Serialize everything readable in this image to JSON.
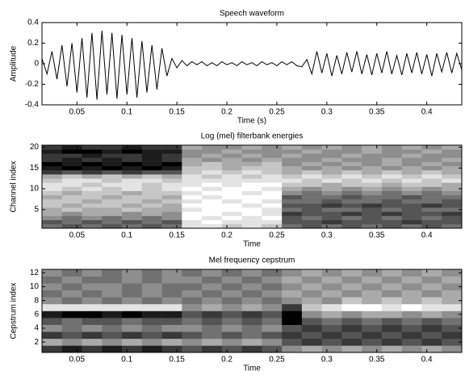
{
  "chart_data": [
    {
      "type": "line",
      "title": "Speech waveform",
      "xlabel": "Time (s)",
      "ylabel": "Amplitude",
      "color": "#000000",
      "x": [
        0.015,
        0.02,
        0.025,
        0.03,
        0.035,
        0.04,
        0.045,
        0.05,
        0.055,
        0.06,
        0.065,
        0.07,
        0.075,
        0.08,
        0.085,
        0.09,
        0.095,
        0.1,
        0.105,
        0.11,
        0.115,
        0.12,
        0.125,
        0.13,
        0.135,
        0.14,
        0.145,
        0.15,
        0.155,
        0.16,
        0.165,
        0.17,
        0.175,
        0.18,
        0.185,
        0.19,
        0.195,
        0.2,
        0.205,
        0.21,
        0.215,
        0.22,
        0.225,
        0.23,
        0.235,
        0.24,
        0.245,
        0.25,
        0.255,
        0.26,
        0.265,
        0.27,
        0.275,
        0.28,
        0.285,
        0.29,
        0.295,
        0.3,
        0.305,
        0.31,
        0.315,
        0.32,
        0.325,
        0.33,
        0.335,
        0.34,
        0.345,
        0.35,
        0.355,
        0.36,
        0.365,
        0.37,
        0.375,
        0.38,
        0.385,
        0.39,
        0.395,
        0.4,
        0.405,
        0.41,
        0.415,
        0.42,
        0.425,
        0.43,
        0.435
      ],
      "values": [
        0.05,
        -0.1,
        0.12,
        -0.15,
        0.18,
        -0.22,
        0.2,
        -0.28,
        0.25,
        -0.33,
        0.3,
        -0.35,
        0.32,
        -0.3,
        0.3,
        -0.34,
        0.28,
        -0.3,
        0.25,
        -0.33,
        0.22,
        -0.28,
        0.18,
        -0.25,
        0.15,
        -0.12,
        0.05,
        -0.04,
        0.03,
        -0.02,
        0.02,
        -0.01,
        0.02,
        -0.02,
        0.01,
        -0.02,
        0.02,
        -0.01,
        0.01,
        -0.02,
        0.02,
        -0.01,
        0.01,
        -0.02,
        0.02,
        -0.01,
        0.01,
        -0.02,
        0.02,
        -0.01,
        0.02,
        -0.02,
        -0.03,
        0.04,
        -0.1,
        0.12,
        -0.09,
        0.1,
        -0.12,
        0.08,
        -0.1,
        0.11,
        -0.08,
        0.12,
        -0.1,
        0.09,
        -0.11,
        0.1,
        -0.09,
        0.12,
        -0.1,
        0.08,
        -0.11,
        0.1,
        -0.09,
        0.11,
        -0.1,
        0.09,
        -0.12,
        0.1,
        -0.08,
        0.11,
        -0.09,
        0.1,
        -0.06
      ],
      "xlim": [
        0.015,
        0.435
      ],
      "xticks": [
        0.05,
        0.1,
        0.15,
        0.2,
        0.25,
        0.3,
        0.35,
        0.4
      ],
      "ylim": [
        -0.4,
        0.4
      ],
      "yticks": [
        -0.4,
        -0.2,
        0,
        0.2,
        0.4
      ]
    },
    {
      "type": "heatmap",
      "title": "Log (mel) filterbank energies",
      "xlabel": "Time",
      "ylabel": "Channel index",
      "colormap": "gray",
      "clim": [
        0,
        9
      ],
      "x": [
        0.025,
        0.045,
        0.065,
        0.085,
        0.105,
        0.125,
        0.145,
        0.165,
        0.185,
        0.205,
        0.225,
        0.245,
        0.265,
        0.285,
        0.305,
        0.325,
        0.345,
        0.365,
        0.385,
        0.405,
        0.425
      ],
      "y": [
        1,
        2,
        3,
        4,
        5,
        6,
        7,
        8,
        9,
        10,
        11,
        12,
        13,
        14,
        15,
        16,
        17,
        18,
        19,
        20
      ],
      "z": [
        [
          4,
          3,
          4,
          3,
          4,
          3,
          4,
          8,
          8,
          7,
          8,
          7,
          4,
          3,
          4,
          3,
          4,
          3,
          4,
          3,
          4
        ],
        [
          3,
          4,
          3,
          4,
          3,
          4,
          3,
          8,
          9,
          8,
          8,
          8,
          3,
          3,
          2,
          3,
          3,
          3,
          2,
          3,
          3
        ],
        [
          5,
          4,
          5,
          4,
          5,
          4,
          5,
          9,
          8,
          9,
          8,
          9,
          3,
          4,
          3,
          4,
          3,
          4,
          3,
          4,
          3
        ],
        [
          6,
          5,
          6,
          6,
          5,
          6,
          5,
          9,
          9,
          8,
          9,
          8,
          2,
          3,
          3,
          2,
          3,
          2,
          3,
          3,
          2
        ],
        [
          6,
          7,
          6,
          6,
          7,
          6,
          6,
          8,
          9,
          9,
          9,
          8,
          4,
          3,
          4,
          4,
          3,
          4,
          3,
          4,
          4
        ],
        [
          7,
          6,
          7,
          7,
          6,
          7,
          6,
          9,
          9,
          9,
          8,
          9,
          3,
          3,
          2,
          3,
          2,
          3,
          3,
          2,
          3
        ],
        [
          7,
          7,
          6,
          7,
          7,
          6,
          7,
          8,
          9,
          8,
          9,
          8,
          4,
          4,
          3,
          4,
          4,
          3,
          4,
          4,
          3
        ],
        [
          6,
          7,
          7,
          6,
          7,
          7,
          6,
          9,
          8,
          9,
          9,
          9,
          3,
          4,
          4,
          3,
          4,
          4,
          3,
          4,
          4
        ],
        [
          7,
          6,
          7,
          7,
          6,
          7,
          7,
          8,
          9,
          9,
          8,
          9,
          5,
          4,
          5,
          4,
          5,
          4,
          5,
          4,
          5
        ],
        [
          8,
          7,
          8,
          7,
          8,
          7,
          8,
          9,
          8,
          9,
          9,
          8,
          6,
          5,
          6,
          5,
          6,
          5,
          6,
          5,
          6
        ],
        [
          8,
          8,
          7,
          8,
          8,
          7,
          8,
          8,
          9,
          8,
          9,
          9,
          7,
          7,
          6,
          7,
          7,
          6,
          7,
          7,
          6
        ],
        [
          7,
          8,
          8,
          7,
          8,
          8,
          7,
          8,
          8,
          8,
          8,
          8,
          8,
          7,
          8,
          7,
          8,
          7,
          8,
          7,
          8
        ],
        [
          6,
          7,
          6,
          7,
          6,
          7,
          6,
          8,
          7,
          8,
          7,
          8,
          7,
          8,
          7,
          8,
          7,
          8,
          7,
          8,
          7
        ],
        [
          2,
          3,
          2,
          3,
          2,
          3,
          3,
          7,
          8,
          7,
          8,
          7,
          6,
          7,
          6,
          7,
          6,
          7,
          6,
          7,
          6
        ],
        [
          1,
          0,
          1,
          0,
          1,
          0,
          1,
          7,
          7,
          6,
          7,
          7,
          6,
          5,
          6,
          5,
          6,
          5,
          6,
          5,
          6
        ],
        [
          0,
          1,
          0,
          1,
          0,
          1,
          0,
          6,
          7,
          6,
          6,
          7,
          5,
          6,
          5,
          6,
          5,
          6,
          5,
          6,
          5
        ],
        [
          2,
          1,
          2,
          1,
          2,
          1,
          2,
          6,
          5,
          6,
          5,
          6,
          5,
          5,
          6,
          5,
          5,
          6,
          5,
          5,
          6
        ],
        [
          2,
          2,
          1,
          2,
          2,
          1,
          2,
          5,
          6,
          5,
          6,
          5,
          6,
          5,
          5,
          6,
          5,
          5,
          6,
          5,
          5
        ],
        [
          1,
          0,
          0,
          1,
          0,
          1,
          1,
          5,
          5,
          6,
          5,
          5,
          5,
          6,
          5,
          5,
          6,
          5,
          5,
          6,
          5
        ],
        [
          2,
          1,
          2,
          2,
          1,
          2,
          2,
          6,
          5,
          5,
          6,
          5,
          6,
          5,
          6,
          5,
          6,
          5,
          6,
          5,
          6
        ]
      ],
      "xlim": [
        0.015,
        0.435
      ],
      "xticks": [
        0.05,
        0.1,
        0.15,
        0.2,
        0.25,
        0.3,
        0.35,
        0.4
      ],
      "ylim": [
        0.5,
        20.5
      ],
      "yticks": [
        5,
        10,
        15,
        20
      ]
    },
    {
      "type": "heatmap",
      "title": "Mel frequency cepstrum",
      "xlabel": "Time",
      "ylabel": "Cepstrum index",
      "colormap": "gray",
      "clim": [
        0,
        9
      ],
      "x": [
        0.025,
        0.045,
        0.065,
        0.085,
        0.105,
        0.125,
        0.145,
        0.165,
        0.185,
        0.205,
        0.225,
        0.245,
        0.265,
        0.285,
        0.305,
        0.325,
        0.345,
        0.365,
        0.385,
        0.405,
        0.425
      ],
      "y": [
        1,
        2,
        3,
        4,
        5,
        6,
        7,
        8,
        9,
        10,
        11,
        12
      ],
      "z": [
        [
          2,
          1,
          2,
          1,
          2,
          1,
          2,
          3,
          2,
          3,
          2,
          3,
          5,
          6,
          5,
          6,
          5,
          6,
          5,
          6,
          5
        ],
        [
          6,
          5,
          6,
          5,
          6,
          5,
          6,
          5,
          6,
          5,
          6,
          5,
          3,
          2,
          3,
          2,
          3,
          2,
          3,
          2,
          3
        ],
        [
          2,
          3,
          2,
          3,
          2,
          3,
          2,
          3,
          4,
          3,
          4,
          3,
          2,
          3,
          2,
          3,
          2,
          3,
          2,
          3,
          2
        ],
        [
          5,
          4,
          5,
          4,
          5,
          4,
          5,
          5,
          4,
          5,
          4,
          5,
          3,
          2,
          3,
          2,
          3,
          2,
          3,
          2,
          3
        ],
        [
          3,
          4,
          3,
          3,
          4,
          3,
          3,
          4,
          3,
          4,
          3,
          4,
          0,
          3,
          4,
          3,
          4,
          3,
          4,
          3,
          4
        ],
        [
          1,
          0,
          0,
          1,
          0,
          1,
          1,
          3,
          2,
          3,
          2,
          3,
          0,
          5,
          6,
          5,
          6,
          6,
          5,
          6,
          5
        ],
        [
          8,
          8,
          8,
          8,
          8,
          8,
          8,
          5,
          6,
          5,
          6,
          5,
          2,
          7,
          8,
          9,
          9,
          8,
          9,
          8,
          8
        ],
        [
          5,
          4,
          5,
          4,
          5,
          4,
          5,
          4,
          5,
          4,
          5,
          4,
          5,
          6,
          5,
          7,
          6,
          7,
          6,
          7,
          6
        ],
        [
          4,
          5,
          4,
          5,
          4,
          5,
          4,
          5,
          4,
          5,
          4,
          5,
          6,
          5,
          6,
          5,
          6,
          5,
          6,
          5,
          6
        ],
        [
          5,
          4,
          5,
          5,
          4,
          5,
          4,
          4,
          5,
          4,
          5,
          4,
          5,
          6,
          5,
          6,
          5,
          6,
          5,
          6,
          5
        ],
        [
          4,
          5,
          4,
          4,
          5,
          4,
          5,
          5,
          4,
          5,
          4,
          5,
          6,
          5,
          6,
          5,
          6,
          5,
          6,
          5,
          6
        ],
        [
          5,
          4,
          5,
          4,
          5,
          4,
          5,
          4,
          5,
          4,
          5,
          4,
          5,
          6,
          5,
          6,
          5,
          6,
          5,
          6,
          5
        ]
      ],
      "xlim": [
        0.015,
        0.435
      ],
      "xticks": [
        0.05,
        0.1,
        0.15,
        0.2,
        0.25,
        0.3,
        0.35,
        0.4
      ],
      "ylim": [
        0.5,
        12.5
      ],
      "yticks": [
        2,
        4,
        6,
        8,
        10,
        12
      ]
    }
  ]
}
